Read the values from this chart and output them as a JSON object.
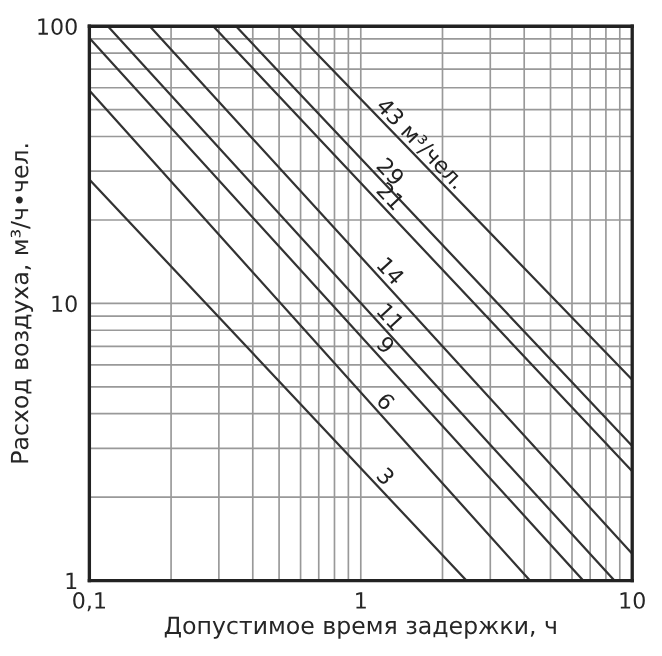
{
  "chart_data": {
    "type": "line",
    "xlabel": "Допустимое время задержки, ч",
    "ylabel": "Расход воздуха, м³/ч•чел.",
    "log": "xy",
    "xlim": [
      0.1,
      10
    ],
    "ylim": [
      1,
      100
    ],
    "xticks": [
      {
        "value": 0.1,
        "label": "0,1"
      },
      1,
      10
    ],
    "yticks": [
      1,
      10,
      100
    ],
    "grid": true,
    "legend": false,
    "marker": "none",
    "line_style": "solid",
    "series": [
      {
        "name": "3",
        "color": "#333333",
        "x": [
          0.1,
          2.45
        ],
        "values": [
          28,
          1
        ]
      },
      {
        "name": "6",
        "color": "#333333",
        "x": [
          0.1,
          4.2
        ],
        "values": [
          58.6,
          1
        ]
      },
      {
        "name": "9",
        "color": "#333333",
        "x": [
          0.1,
          6.6
        ],
        "values": [
          90.7,
          1
        ]
      },
      {
        "name": "11",
        "color": "#333333",
        "x": [
          0.117,
          8.6
        ],
        "values": [
          100,
          1
        ]
      },
      {
        "name": "14",
        "color": "#333333",
        "x": [
          0.167,
          10
        ],
        "values": [
          100,
          1.25
        ]
      },
      {
        "name": "21",
        "color": "#333333",
        "x": [
          0.286,
          10
        ],
        "values": [
          100,
          2.48
        ]
      },
      {
        "name": "29",
        "color": "#333333",
        "x": [
          0.347,
          10
        ],
        "values": [
          100,
          3.06
        ]
      },
      {
        "name": "43 м³/чел.",
        "color": "#333333",
        "x": [
          0.55,
          10
        ],
        "values": [
          100,
          5.3
        ]
      }
    ]
  }
}
